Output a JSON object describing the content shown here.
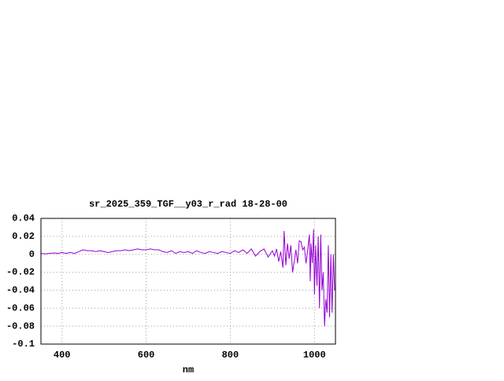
{
  "chart_data": {
    "type": "line",
    "title": "sr_2025_359_TGF__y03_r_rad 18-28-00",
    "x_label": "nm",
    "x": [
      350,
      360,
      370,
      380,
      390,
      400,
      410,
      420,
      430,
      440,
      450,
      460,
      470,
      480,
      490,
      500,
      510,
      520,
      530,
      540,
      550,
      560,
      570,
      580,
      590,
      600,
      610,
      620,
      630,
      640,
      650,
      660,
      670,
      680,
      690,
      700,
      710,
      720,
      730,
      740,
      750,
      760,
      770,
      780,
      790,
      800,
      810,
      820,
      830,
      840,
      850,
      860,
      870,
      880,
      890,
      900,
      905,
      910,
      915,
      920,
      925,
      928,
      932,
      936,
      940,
      944,
      948,
      952,
      956,
      960,
      964,
      968,
      972,
      976,
      980,
      984,
      988,
      990,
      992,
      995,
      998,
      1000,
      1003,
      1006,
      1009,
      1012,
      1015,
      1018,
      1021,
      1024,
      1027,
      1030,
      1033,
      1036,
      1039,
      1042,
      1045,
      1048
    ],
    "series": [
      {
        "name": "sr_2025_359_TGF__y03_r_rad",
        "color": "#9400d3",
        "values": [
          0.001,
          0.0005,
          0.001,
          0.0015,
          0.001,
          0.002,
          0.001,
          0.002,
          0.001,
          0.003,
          0.005,
          0.004,
          0.004,
          0.003,
          0.004,
          0.003,
          0.002,
          0.003,
          0.004,
          0.004,
          0.005,
          0.004,
          0.005,
          0.006,
          0.005,
          0.005,
          0.006,
          0.005,
          0.005,
          0.003,
          0.002,
          0.004,
          0.001,
          0.003,
          0.002,
          0.003,
          0.001,
          0.004,
          0.002,
          0.001,
          0.003,
          0.002,
          0.001,
          0.003,
          0.002,
          0.001,
          0.004,
          0.002,
          0.005,
          0.001,
          0.006,
          -0.002,
          0.003,
          0.006,
          -0.003,
          0.004,
          -0.002,
          0.006,
          -0.008,
          0.003,
          -0.015,
          0.026,
          -0.012,
          0.012,
          -0.005,
          0.01,
          -0.02,
          -0.008,
          0.005,
          -0.01,
          0.015,
          0.014,
          0.005,
          0.008,
          -0.01,
          0.005,
          0.022,
          -0.03,
          0.012,
          -0.01,
          0.028,
          -0.045,
          0.01,
          -0.035,
          0.02,
          -0.06,
          0.022,
          -0.04,
          -0.02,
          -0.08,
          -0.05,
          -0.065,
          0.01,
          -0.07,
          0,
          -0.065,
          0,
          -0.04
        ]
      }
    ],
    "xlim": [
      350,
      1050
    ],
    "ylim": [
      -0.1,
      0.04
    ],
    "xticks": [
      400,
      600,
      800,
      1000
    ],
    "yticks": [
      -0.1,
      -0.08,
      -0.06,
      -0.04,
      -0.02,
      0,
      0.02,
      0.04
    ],
    "grid": true
  }
}
